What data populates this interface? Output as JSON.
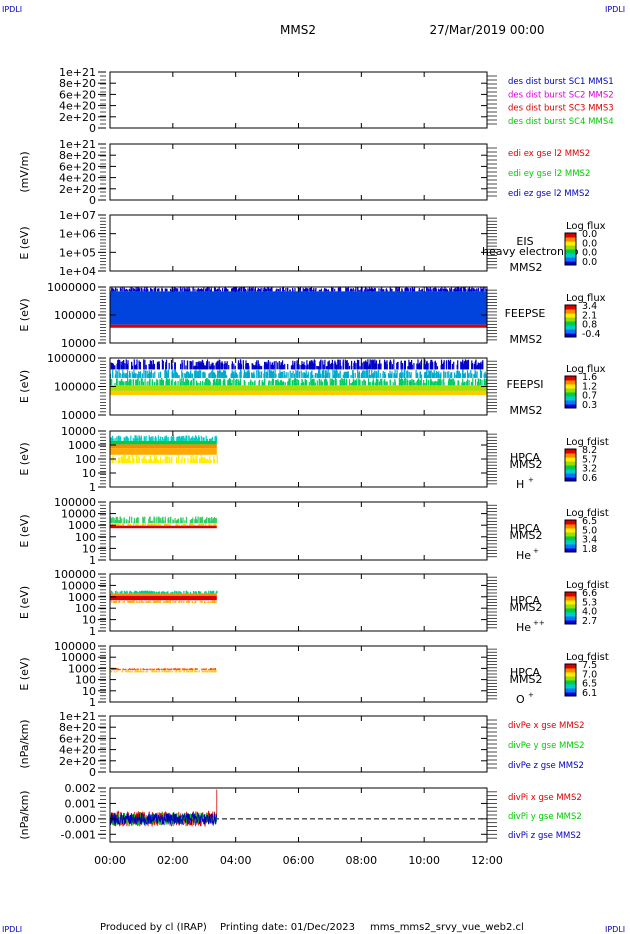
{
  "header": {
    "corner_logo": "IPDLI",
    "title": "MMS2",
    "date": "27/Mar/2019 00:00"
  },
  "footer": {
    "produced_by": "Produced by cl (IRAP)",
    "printing_date": "Printing date: 01/Dec/2023",
    "script_name": "mms_mms2_srvy_vue_web2.cl"
  },
  "colors": {
    "red": "#dd0000",
    "magenta": "#dd00dd",
    "green": "#00cc00",
    "blue": "#0000bb",
    "spectrogram_scale": [
      "#0000cc",
      "#0077ff",
      "#00cccc",
      "#00cc44",
      "#99dd00",
      "#ffee00",
      "#ff8800",
      "#dd0000"
    ]
  },
  "chart_data": [
    {
      "id": "panel-dist",
      "type": "line",
      "ylabel": "",
      "yticks": [
        "0",
        "2e+20",
        "4e+20",
        "6e+20",
        "8e+20",
        "1e+21"
      ],
      "ylim": [
        0,
        1e+21
      ],
      "series": [
        {
          "name": "des dist burst SC1 MMS1",
          "color": "#0000bb",
          "x": [],
          "y": []
        },
        {
          "name": "des dist burst SC2 MMS2",
          "color": "#dd00dd",
          "x": [],
          "y": []
        },
        {
          "name": "des dist burst SC3 MMS3",
          "color": "#dd0000",
          "x": [],
          "y": []
        },
        {
          "name": "des dist burst SC4 MMS4",
          "color": "#00cc00",
          "x": [],
          "y": []
        }
      ],
      "zero_line": true
    },
    {
      "id": "panel-edi",
      "type": "line",
      "ylabel": "(mV/m)",
      "yticks": [
        "0",
        "2e+20",
        "4e+20",
        "6e+20",
        "8e+20",
        "1e+21"
      ],
      "ylim": [
        0,
        1e+21
      ],
      "series": [
        {
          "name": "edi ex gse l2 MMS2",
          "color": "#dd0000",
          "x": [],
          "y": []
        },
        {
          "name": "edi ey gse l2 MMS2",
          "color": "#00cc00",
          "x": [],
          "y": []
        },
        {
          "name": "edi ez gse l2 MMS2",
          "color": "#0000bb",
          "x": [],
          "y": []
        }
      ],
      "zero_line": true
    },
    {
      "id": "panel-eis",
      "type": "heatmap",
      "ylabel": "E (eV)",
      "yticks": [
        "1e+04",
        "1e+05",
        "1e+06",
        "1e+07"
      ],
      "ylim": [
        10000.0,
        10000000.0
      ],
      "yscale": "log",
      "instrument": [
        "EIS",
        "MMS2"
      ],
      "overlay_text": "heavy electron to",
      "colorbar": {
        "title": "Log flux",
        "ticks": [
          "0.0",
          "0.0",
          "0.0",
          "0.0"
        ]
      },
      "bands": []
    },
    {
      "id": "panel-feepse",
      "type": "heatmap",
      "ylabel": "E (eV)",
      "yticks": [
        "10000",
        "100000",
        "1000000"
      ],
      "ylim": [
        10000,
        1000000
      ],
      "yscale": "log",
      "instrument": [
        "FEEPSE",
        "MMS2"
      ],
      "colorbar": {
        "title": "Log flux",
        "ticks": [
          "3.4",
          "2.1",
          "0.8",
          "-0.4"
        ]
      },
      "bands": [
        {
          "from_hour": 0.0,
          "to_hour": 12.0,
          "e_lo": 700000,
          "e_hi": 1000000,
          "color": "#0000cc",
          "speckle": true
        },
        {
          "from_hour": 0.0,
          "to_hour": 12.0,
          "e_lo": 45000,
          "e_hi": 700000,
          "color": "#0044dd"
        },
        {
          "from_hour": 0.0,
          "to_hour": 12.0,
          "e_lo": 35000,
          "e_hi": 45000,
          "color": "#dd0000"
        }
      ]
    },
    {
      "id": "panel-feepsi",
      "type": "heatmap",
      "ylabel": "E (eV)",
      "yticks": [
        "10000",
        "100000",
        "1000000"
      ],
      "ylim": [
        10000,
        1000000
      ],
      "yscale": "log",
      "instrument": [
        "FEEPSI",
        "MMS2"
      ],
      "colorbar": {
        "title": "Log flux",
        "ticks": [
          "1.6",
          "1.2",
          "0.7",
          "0.3"
        ]
      },
      "bands": [
        {
          "from_hour": 0.0,
          "to_hour": 12.0,
          "e_lo": 400000,
          "e_hi": 900000,
          "color": "#0000cc",
          "speckle": true
        },
        {
          "from_hour": 0.0,
          "to_hour": 12.0,
          "e_lo": 200000,
          "e_hi": 400000,
          "color": "#00aacc",
          "speckle": true
        },
        {
          "from_hour": 0.0,
          "to_hour": 12.0,
          "e_lo": 110000,
          "e_hi": 200000,
          "color": "#00cc66",
          "speckle": true
        },
        {
          "from_hour": 0.0,
          "to_hour": 12.0,
          "e_lo": 70000,
          "e_hi": 110000,
          "color": "#aadd00"
        },
        {
          "from_hour": 0.0,
          "to_hour": 12.0,
          "e_lo": 50000,
          "e_hi": 70000,
          "color": "#ffcc00"
        }
      ]
    },
    {
      "id": "panel-hpca-h",
      "type": "heatmap",
      "ylabel": "E (eV)",
      "yticks": [
        "1",
        "10",
        "100",
        "1000",
        "10000"
      ],
      "ylim": [
        1,
        10000
      ],
      "yscale": "log",
      "instrument": [
        "HPCA",
        "MMS2",
        "H",
        "+"
      ],
      "colorbar": {
        "title": "Log fdist",
        "ticks": [
          "8.2",
          "5.7",
          "3.2",
          "0.6"
        ]
      },
      "bands": [
        {
          "from_hour": 0.0,
          "to_hour": 3.4,
          "e_lo": 2000,
          "e_hi": 5000,
          "color": "#00cccc",
          "speckle": true
        },
        {
          "from_hour": 0.0,
          "to_hour": 3.4,
          "e_lo": 1100,
          "e_hi": 2000,
          "color": "#00cc44"
        },
        {
          "from_hour": 0.0,
          "to_hour": 3.4,
          "e_lo": 600,
          "e_hi": 1100,
          "color": "#ff8800"
        },
        {
          "from_hour": 0.0,
          "to_hour": 3.4,
          "e_lo": 200,
          "e_hi": 600,
          "color": "#ffaa00"
        },
        {
          "from_hour": 0.0,
          "to_hour": 3.4,
          "e_lo": 50,
          "e_hi": 200,
          "color": "#ffee00",
          "speckle": true
        }
      ]
    },
    {
      "id": "panel-hpca-he",
      "type": "heatmap",
      "ylabel": "E (eV)",
      "yticks": [
        "1",
        "10",
        "100",
        "1000",
        "10000",
        "100000"
      ],
      "ylim": [
        1,
        100000
      ],
      "yscale": "log",
      "instrument": [
        "HPCA",
        "MMS2",
        "He",
        "+"
      ],
      "colorbar": {
        "title": "Log fdist",
        "ticks": [
          "6.5",
          "5.0",
          "3.4",
          "1.8"
        ]
      },
      "bands": [
        {
          "from_hour": 0.0,
          "to_hour": 3.4,
          "e_lo": 1500,
          "e_hi": 6000,
          "color": "#33cc66",
          "speckle": true
        },
        {
          "from_hour": 0.0,
          "to_hour": 3.4,
          "e_lo": 900,
          "e_hi": 1500,
          "color": "#ffcc00",
          "speckle": true
        },
        {
          "from_hour": 0.0,
          "to_hour": 3.4,
          "e_lo": 550,
          "e_hi": 900,
          "color": "#dd0000"
        }
      ]
    },
    {
      "id": "panel-hpca-hepp",
      "type": "heatmap",
      "ylabel": "E (eV)",
      "yticks": [
        "1",
        "10",
        "100",
        "1000",
        "10000",
        "100000"
      ],
      "ylim": [
        1,
        100000
      ],
      "yscale": "log",
      "instrument": [
        "HPCA",
        "MMS2",
        "He",
        "++"
      ],
      "colorbar": {
        "title": "Log fdist",
        "ticks": [
          "6.6",
          "5.3",
          "4.0",
          "2.7"
        ]
      },
      "bands": [
        {
          "from_hour": 0.0,
          "to_hour": 3.4,
          "e_lo": 2000,
          "e_hi": 3500,
          "color": "#00cc88",
          "speckle": true
        },
        {
          "from_hour": 0.0,
          "to_hour": 3.4,
          "e_lo": 1200,
          "e_hi": 2000,
          "color": "#ff8800"
        },
        {
          "from_hour": 0.0,
          "to_hour": 3.4,
          "e_lo": 500,
          "e_hi": 1200,
          "color": "#dd0000"
        },
        {
          "from_hour": 0.0,
          "to_hour": 3.4,
          "e_lo": 300,
          "e_hi": 500,
          "color": "#ffaa00",
          "speckle": true
        }
      ]
    },
    {
      "id": "panel-hpca-o",
      "type": "heatmap",
      "ylabel": "E (eV)",
      "yticks": [
        "1",
        "10",
        "100",
        "1000",
        "10000",
        "100000"
      ],
      "ylim": [
        1,
        100000
      ],
      "yscale": "log",
      "instrument": [
        "HPCA",
        "MMS2",
        "O",
        "+"
      ],
      "colorbar": {
        "title": "Log fdist",
        "ticks": [
          "7.5",
          "7.0",
          "6.5",
          "6.1"
        ]
      },
      "bands": [
        {
          "from_hour": 0.0,
          "to_hour": 3.4,
          "e_lo": 700,
          "e_hi": 1100,
          "color": "#ff5500",
          "speckle": true
        },
        {
          "from_hour": 0.0,
          "to_hour": 3.4,
          "e_lo": 450,
          "e_hi": 700,
          "color": "#ffcc00",
          "speckle": true
        }
      ]
    },
    {
      "id": "panel-divpe",
      "type": "line",
      "ylabel": "(nPa/km)",
      "yticks": [
        "0",
        "2e+20",
        "4e+20",
        "6e+20",
        "8e+20",
        "1e+21"
      ],
      "ylim": [
        0,
        1e+21
      ],
      "series": [
        {
          "name": "divPe x gse MMS2",
          "color": "#dd0000",
          "x": [],
          "y": []
        },
        {
          "name": "divPe y gse MMS2",
          "color": "#00cc00",
          "x": [],
          "y": []
        },
        {
          "name": "divPe z gse MMS2",
          "color": "#0000bb",
          "x": [],
          "y": []
        }
      ],
      "zero_line": true
    },
    {
      "id": "panel-divpi",
      "type": "line",
      "ylabel": "(nPa/km)",
      "yticks": [
        "-0.001",
        "0.000",
        "0.001",
        "0.002"
      ],
      "ylim": [
        -0.0015,
        0.002
      ],
      "series": [
        {
          "name": "divPi x gse MMS2",
          "color": "#dd0000",
          "noise_amp": 0.0005,
          "x_range": [
            0.0,
            3.4
          ],
          "spike": {
            "x": 3.4,
            "y": 0.0019
          }
        },
        {
          "name": "divPi y gse MMS2",
          "color": "#00cc00",
          "noise_amp": 0.0004,
          "x_range": [
            0.0,
            3.4
          ]
        },
        {
          "name": "divPi z gse MMS2",
          "color": "#0000bb",
          "noise_amp": 0.0004,
          "x_range": [
            0.0,
            3.4
          ]
        }
      ],
      "zero_line": true
    }
  ],
  "xaxis": {
    "range_hours": [
      0,
      12
    ],
    "ticks": [
      "00:00",
      "02:00",
      "04:00",
      "06:00",
      "08:00",
      "10:00",
      "12:00"
    ]
  }
}
